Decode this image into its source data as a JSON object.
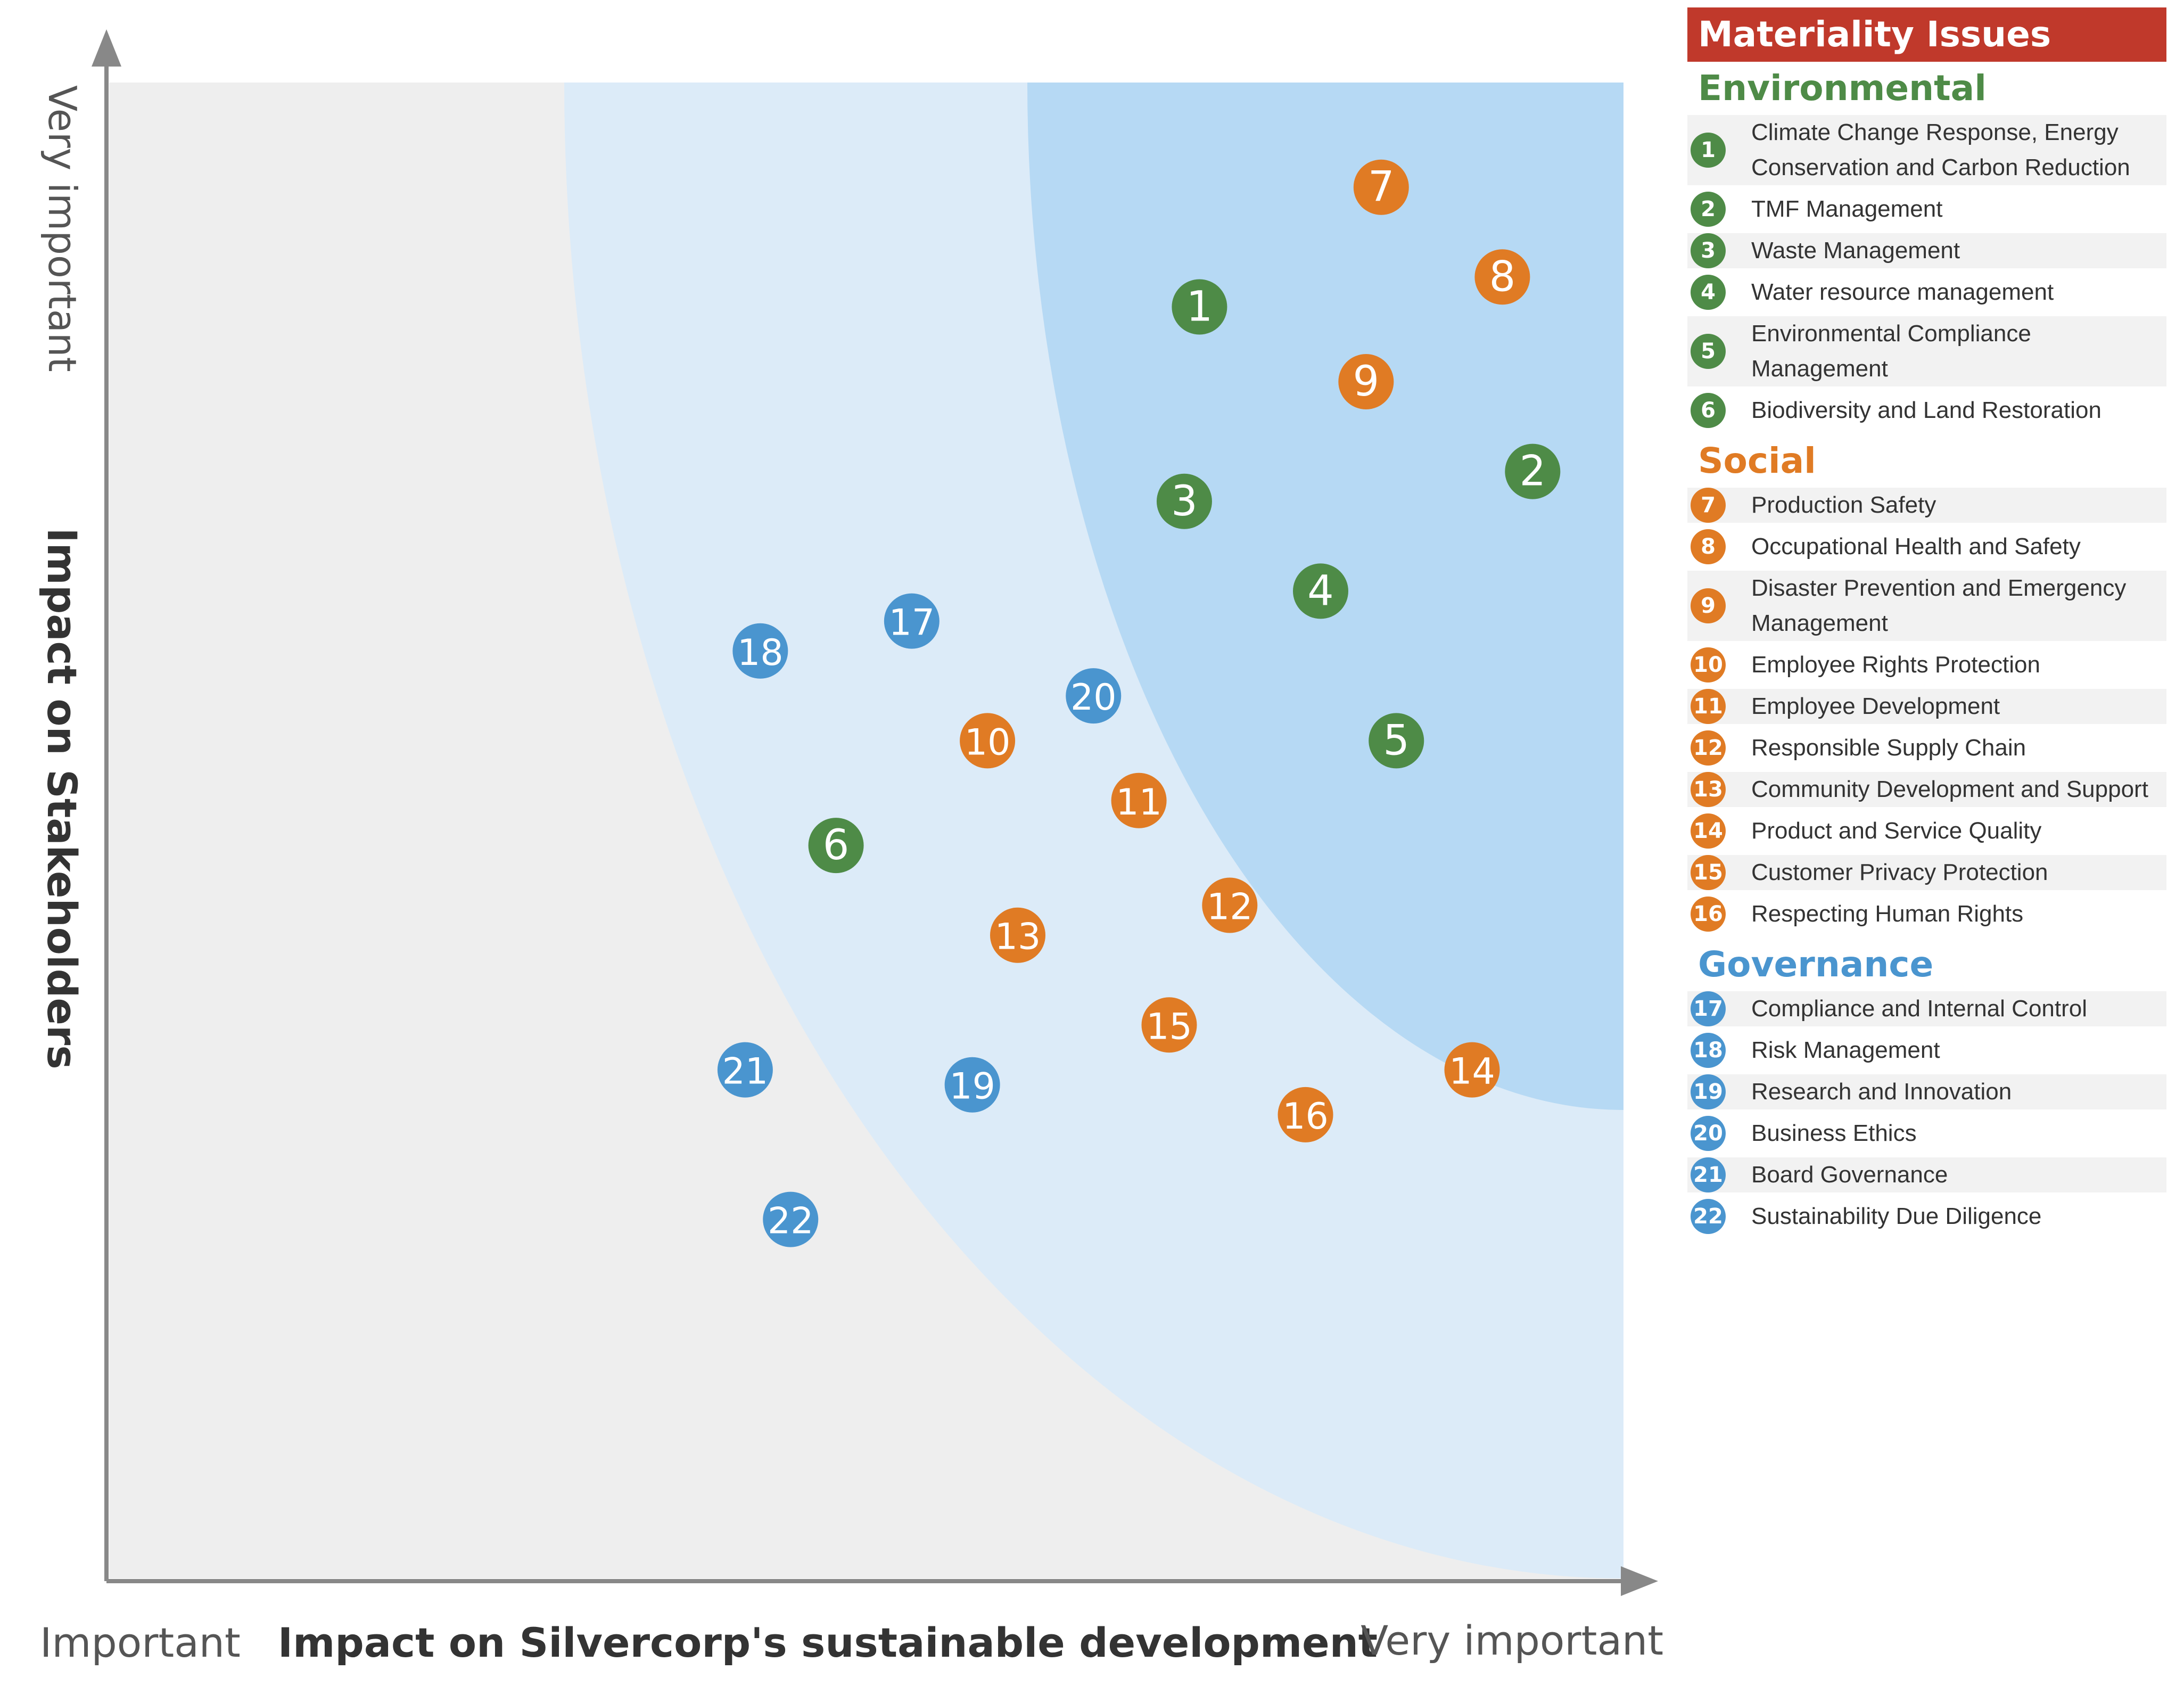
{
  "chart_data": {
    "type": "scatter",
    "title": "",
    "xlabel": "Impact on Silvercorp's sustainable development",
    "ylabel": "Impact on Stakeholders",
    "x_low_label": "Important",
    "x_high_label": "Very important",
    "y_high_label": "Very important",
    "xlim": [
      0,
      100
    ],
    "ylim": [
      0,
      100
    ],
    "grid": false,
    "points": [
      {
        "id": "1",
        "x": 72,
        "y": 85,
        "group": "Environmental"
      },
      {
        "id": "2",
        "x": 94,
        "y": 74,
        "group": "Environmental"
      },
      {
        "id": "3",
        "x": 71,
        "y": 72,
        "group": "Environmental"
      },
      {
        "id": "4",
        "x": 80,
        "y": 66,
        "group": "Environmental"
      },
      {
        "id": "5",
        "x": 85,
        "y": 56,
        "group": "Environmental"
      },
      {
        "id": "6",
        "x": 48,
        "y": 49,
        "group": "Environmental"
      },
      {
        "id": "7",
        "x": 84,
        "y": 93,
        "group": "Social"
      },
      {
        "id": "8",
        "x": 92,
        "y": 87,
        "group": "Social"
      },
      {
        "id": "9",
        "x": 83,
        "y": 80,
        "group": "Social"
      },
      {
        "id": "10",
        "x": 58,
        "y": 56,
        "group": "Social"
      },
      {
        "id": "11",
        "x": 68,
        "y": 52,
        "group": "Social"
      },
      {
        "id": "12",
        "x": 74,
        "y": 45,
        "group": "Social"
      },
      {
        "id": "13",
        "x": 60,
        "y": 43,
        "group": "Social"
      },
      {
        "id": "14",
        "x": 90,
        "y": 34,
        "group": "Social"
      },
      {
        "id": "15",
        "x": 70,
        "y": 37,
        "group": "Social"
      },
      {
        "id": "16",
        "x": 79,
        "y": 31,
        "group": "Social"
      },
      {
        "id": "17",
        "x": 53,
        "y": 64,
        "group": "Governance"
      },
      {
        "id": "18",
        "x": 43,
        "y": 62,
        "group": "Governance"
      },
      {
        "id": "19",
        "x": 57,
        "y": 33,
        "group": "Governance"
      },
      {
        "id": "20",
        "x": 65,
        "y": 59,
        "group": "Governance"
      },
      {
        "id": "21",
        "x": 42,
        "y": 34,
        "group": "Governance"
      },
      {
        "id": "22",
        "x": 45,
        "y": 24,
        "group": "Governance"
      }
    ]
  },
  "colors": {
    "Environmental": "#4e8b47",
    "Social": "#e07b24",
    "Governance": "#4a95cf",
    "header": "#c0392b",
    "plot_bg": "#eeeeee",
    "zone_outer": "#dcebf8",
    "zone_inner": "#b6d9f4"
  },
  "panel": {
    "title": "Materiality Issues",
    "groups": [
      {
        "name": "Environmental",
        "items": [
          {
            "n": "1",
            "label": "Climate Change Response, Energy Conservation and Carbon Reduction"
          },
          {
            "n": "2",
            "label": "TMF Management"
          },
          {
            "n": "3",
            "label": "Waste Management"
          },
          {
            "n": "4",
            "label": "Water resource management"
          },
          {
            "n": "5",
            "label": "Environmental Compliance Management"
          },
          {
            "n": "6",
            "label": "Biodiversity and Land Restoration"
          }
        ]
      },
      {
        "name": "Social",
        "items": [
          {
            "n": "7",
            "label": "Production Safety"
          },
          {
            "n": "8",
            "label": "Occupational Health and Safety"
          },
          {
            "n": "9",
            "label": "Disaster Prevention and Emergency Management"
          },
          {
            "n": "10",
            "label": "Employee Rights Protection"
          },
          {
            "n": "11",
            "label": "Employee Development"
          },
          {
            "n": "12",
            "label": "Responsible Supply Chain"
          },
          {
            "n": "13",
            "label": "Community Development and Support"
          },
          {
            "n": "14",
            "label": "Product and Service Quality"
          },
          {
            "n": "15",
            "label": "Customer Privacy Protection"
          },
          {
            "n": "16",
            "label": "Respecting Human Rights"
          }
        ]
      },
      {
        "name": "Governance",
        "items": [
          {
            "n": "17",
            "label": "Compliance and Internal Control"
          },
          {
            "n": "18",
            "label": "Risk Management"
          },
          {
            "n": "19",
            "label": "Research and Innovation"
          },
          {
            "n": "20",
            "label": "Business Ethics"
          },
          {
            "n": "21",
            "label": "Board Governance"
          },
          {
            "n": "22",
            "label": "Sustainability Due Diligence"
          }
        ]
      }
    ]
  }
}
